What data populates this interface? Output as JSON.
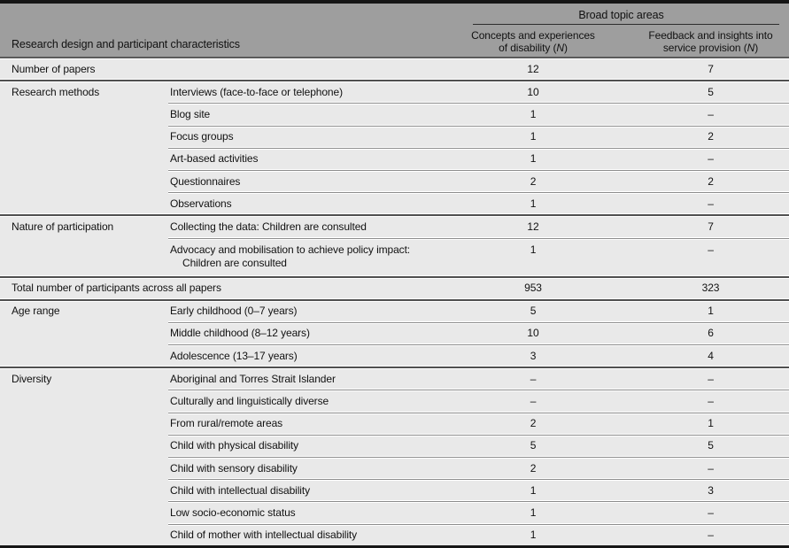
{
  "table": {
    "header": {
      "spanner": "Broad topic areas",
      "left_title": "Research design and participant characteristics",
      "col_concepts": {
        "line1": "Concepts and experiences",
        "line2_prefix": "of disability (",
        "n": "N",
        "suffix": ")"
      },
      "col_feedback": {
        "line1": "Feedback and insights into",
        "line2_prefix": "service provision (",
        "n": "N",
        "suffix": ")"
      }
    },
    "rows": [
      {
        "group": "Number of papers",
        "label": "",
        "n1": "12",
        "n2": "7",
        "span": true,
        "divider": "none"
      },
      {
        "group": "Research methods",
        "label": "Interviews (face-to-face or telephone)",
        "n1": "10",
        "n2": "5",
        "divider": "full"
      },
      {
        "group": "",
        "label": "Blog site",
        "n1": "1",
        "n2": "–",
        "divider": "sub"
      },
      {
        "group": "",
        "label": "Focus groups",
        "n1": "1",
        "n2": "2",
        "divider": "sub"
      },
      {
        "group": "",
        "label": "Art-based activities",
        "n1": "1",
        "n2": "–",
        "divider": "sub"
      },
      {
        "group": "",
        "label": "Questionnaires",
        "n1": "2",
        "n2": "2",
        "divider": "sub"
      },
      {
        "group": "",
        "label": "Observations",
        "n1": "1",
        "n2": "–",
        "divider": "sub"
      },
      {
        "group": "Nature of participation",
        "label": "Collecting the data: Children are consulted",
        "n1": "12",
        "n2": "7",
        "divider": "full"
      },
      {
        "group": "",
        "label": "Advocacy and mobilisation to achieve policy impact:",
        "label2": "Children are consulted",
        "n1": "1",
        "n2": "–",
        "divider": "sub"
      },
      {
        "group": "Total number of participants across all papers",
        "label": "",
        "n1": "953",
        "n2": "323",
        "span": true,
        "divider": "full"
      },
      {
        "group": "Age range",
        "label": "Early childhood (0–7 years)",
        "n1": "5",
        "n2": "1",
        "divider": "full"
      },
      {
        "group": "",
        "label": "Middle childhood (8–12 years)",
        "n1": "10",
        "n2": "6",
        "divider": "sub"
      },
      {
        "group": "",
        "label": "Adolescence (13–17 years)",
        "n1": "3",
        "n2": "4",
        "divider": "sub"
      },
      {
        "group": "Diversity",
        "label": "Aboriginal and Torres Strait Islander",
        "n1": "–",
        "n2": "–",
        "divider": "full"
      },
      {
        "group": "",
        "label": "Culturally and linguistically diverse",
        "n1": "–",
        "n2": "–",
        "divider": "sub"
      },
      {
        "group": "",
        "label": "From rural/remote areas",
        "n1": "2",
        "n2": "1",
        "divider": "sub"
      },
      {
        "group": "",
        "label": "Child with physical disability",
        "n1": "5",
        "n2": "5",
        "divider": "sub"
      },
      {
        "group": "",
        "label": "Child with sensory disability",
        "n1": "2",
        "n2": "–",
        "divider": "sub"
      },
      {
        "group": "",
        "label": "Child with intellectual disability",
        "n1": "1",
        "n2": "3",
        "divider": "sub"
      },
      {
        "group": "",
        "label": "Low socio-economic status",
        "n1": "1",
        "n2": "–",
        "divider": "sub"
      },
      {
        "group": "",
        "label": "Child of mother with intellectual disability",
        "n1": "1",
        "n2": "–",
        "divider": "sub"
      }
    ]
  },
  "colors": {
    "header_bg": "#9e9e9e",
    "row_bg": "#e9e9e9",
    "outer_border": "#161616",
    "group_rule": "#4f4f4f",
    "sub_rule": "#8c8c8c",
    "text": "#111111"
  }
}
